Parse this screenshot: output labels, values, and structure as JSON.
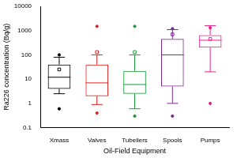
{
  "chart_data": {
    "type": "box",
    "x_label": "Oil-Field Equipment",
    "y_label": "Ra226 concentration (Bq/g)",
    "categories": [
      "Xmass",
      "Valves",
      "Tubeliers",
      "Spools",
      "Pumps"
    ],
    "colors": [
      "#000000",
      "#e0201c",
      "#1a9a3a",
      "#7a2a8c",
      "#e8208c"
    ],
    "boxes": [
      {
        "min": 2.5,
        "q1": 4,
        "median": 12,
        "q3": 40,
        "max": 80,
        "mean": 25,
        "outliers": [
          0.6,
          100
        ]
      },
      {
        "min": 0.9,
        "q1": 2,
        "median": 7,
        "q3": 40,
        "max": 100,
        "mean": 130,
        "outliers": [
          0.4,
          1500
        ]
      },
      {
        "min": 0.6,
        "q1": 2.5,
        "median": 6,
        "q3": 22,
        "max": 100,
        "mean": 130,
        "outliers": [
          0.3,
          1500
        ]
      },
      {
        "min": 1,
        "q1": 5,
        "median": 100,
        "q3": 450,
        "max": 1100,
        "mean": 700,
        "outliers": [
          0.3,
          1200
        ]
      },
      {
        "min": 20,
        "q1": 200,
        "median": 400,
        "q3": 650,
        "max": 1600,
        "mean": 450,
        "outliers": [
          1,
          1300
        ]
      }
    ],
    "log": "y",
    "ylim": [
      0.1,
      10000
    ],
    "yticks": [
      0.1,
      1,
      10,
      100,
      1000,
      10000
    ],
    "grid": false
  }
}
